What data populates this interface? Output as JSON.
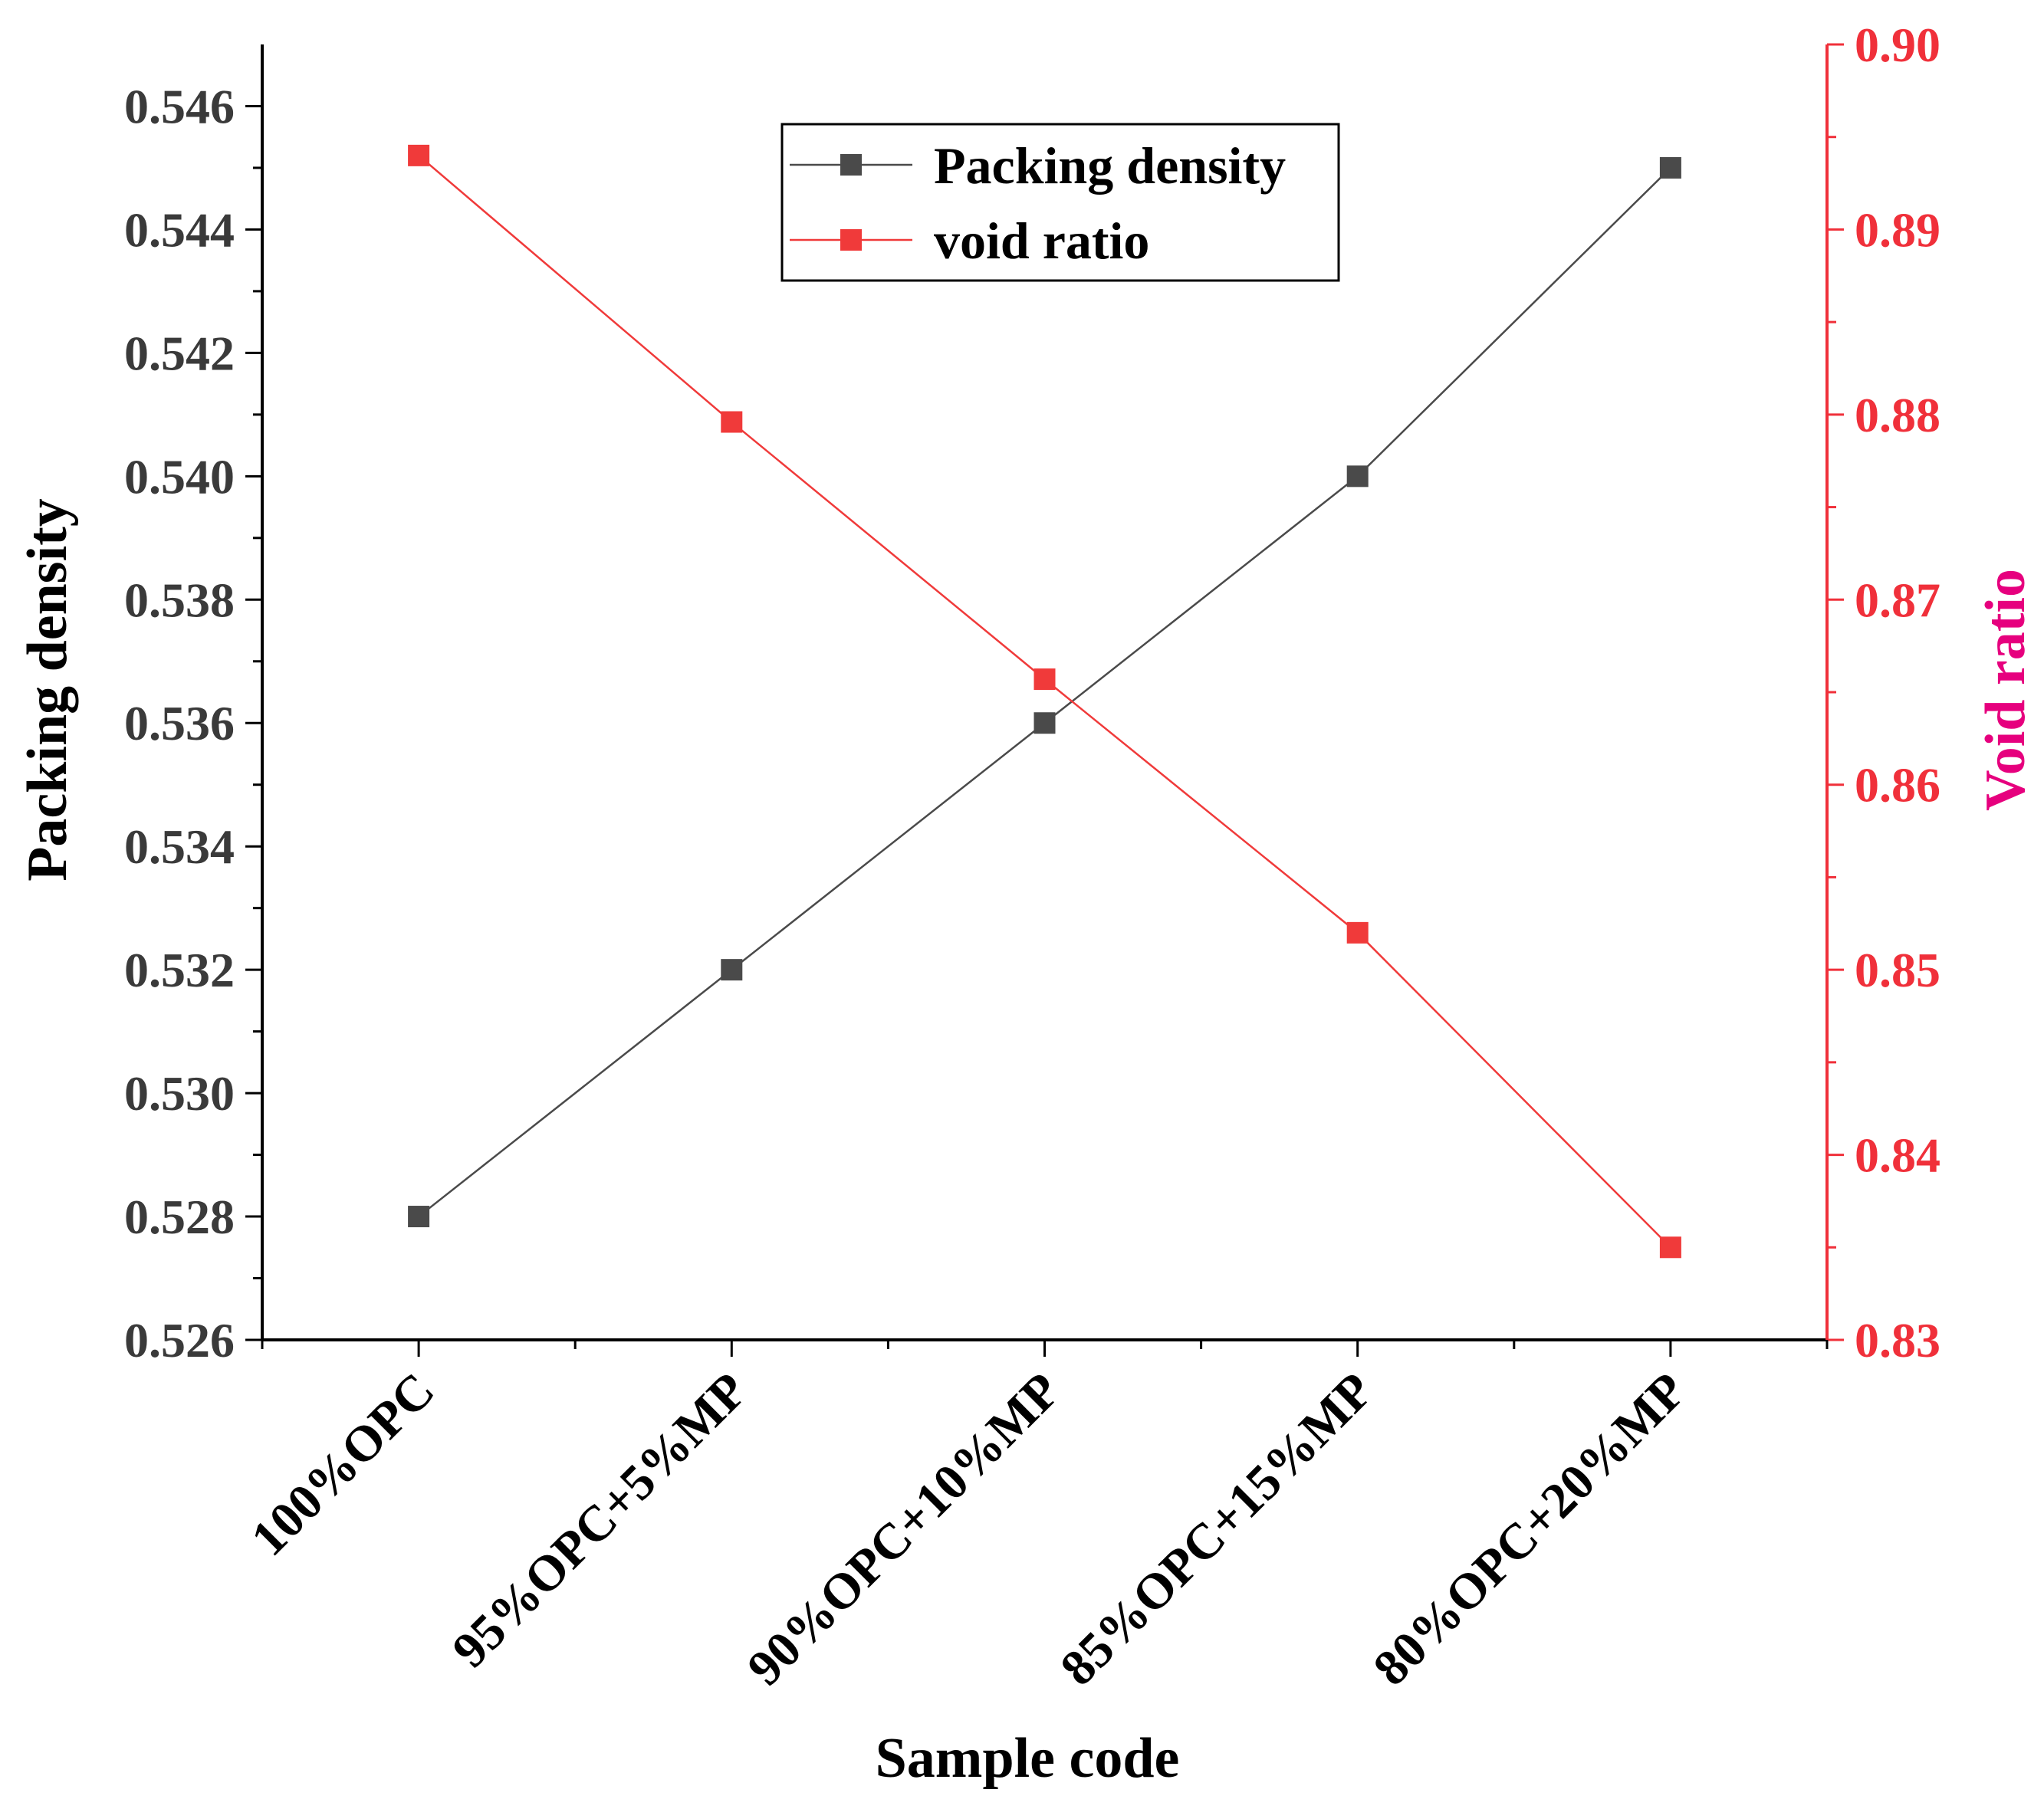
{
  "chart_data": {
    "type": "line",
    "title": "",
    "xlabel": "Sample code",
    "categories": [
      "100%OPC",
      "95%OPC+5%MP",
      "90%OPC+10%MP",
      "85%OPC+15%MP",
      "80%OPC+20%MP"
    ],
    "left_axis": {
      "label": "Packing density",
      "ylim": [
        0.526,
        0.547
      ],
      "ticks": [
        0.526,
        0.528,
        0.53,
        0.532,
        0.534,
        0.536,
        0.538,
        0.54,
        0.542,
        0.544,
        0.546
      ],
      "tick_labels": [
        "0.526",
        "0.528",
        "0.530",
        "0.532",
        "0.534",
        "0.536",
        "0.538",
        "0.540",
        "0.542",
        "0.544",
        "0.546"
      ],
      "color": "#3a3a3a"
    },
    "right_axis": {
      "label": "Void ratio",
      "ylim": [
        0.83,
        0.9
      ],
      "ticks": [
        0.83,
        0.84,
        0.85,
        0.86,
        0.87,
        0.88,
        0.89,
        0.9
      ],
      "tick_labels": [
        "0.83",
        "0.84",
        "0.85",
        "0.86",
        "0.87",
        "0.88",
        "0.89",
        "0.90"
      ],
      "color": "#f0303a",
      "label_color": "#e6007e"
    },
    "series": [
      {
        "name": "Packing density",
        "axis": "left",
        "values": [
          0.528,
          0.532,
          0.536,
          0.54,
          0.545
        ],
        "color": "#4a4a4a"
      },
      {
        "name": "void ratio",
        "axis": "right",
        "values": [
          0.894,
          0.8796,
          0.8657,
          0.852,
          0.835
        ],
        "color": "#f03a3a"
      }
    ],
    "legend": {
      "placement": "top-center"
    },
    "grid": false
  }
}
